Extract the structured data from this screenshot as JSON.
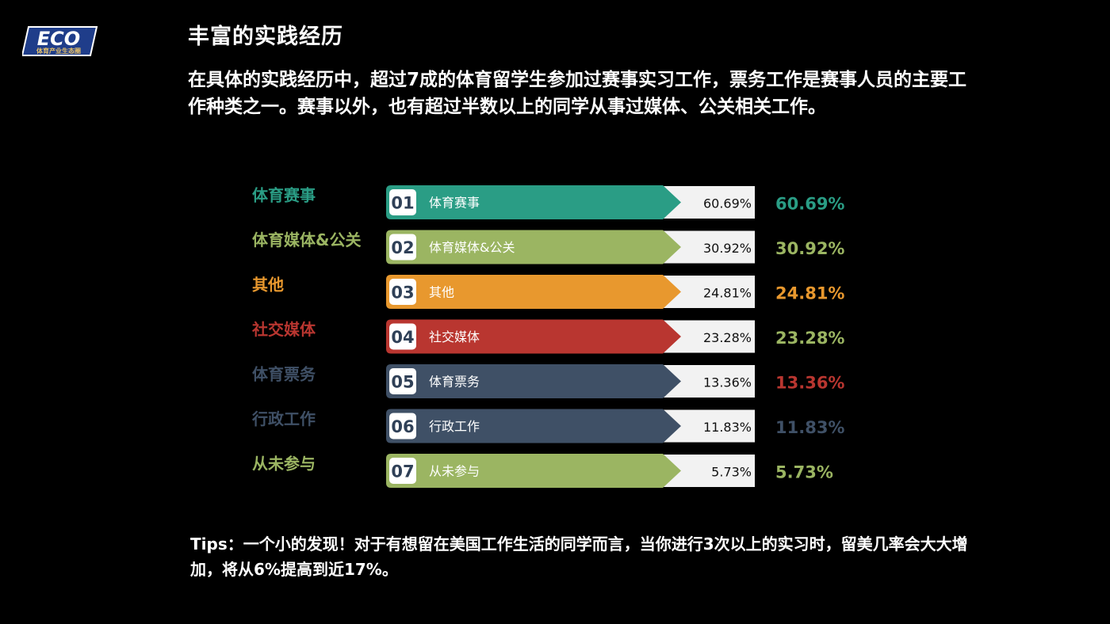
{
  "brand": {
    "logo_text": "ECO",
    "logo_subtitle": "体育产业生态圈"
  },
  "slide": {
    "title": "丰富的实践经历",
    "intro": "在具体的实践经历中，超过7成的体育留学生参加过赛事实习工作，票务工作是赛事人员的主要工作种类之一。赛事以外，也有超过半数以上的同学从事过媒体、公关相关工作。",
    "tips": "Tips：一个小的发现！对于有想留在美国工作生活的同学而言，当你进行3次以上的实习时，留美几率会大大增加，将从6%提高到近17%。"
  },
  "colors": {
    "background": "#000000",
    "teal": "#2a9d85",
    "olive": "#9bb562",
    "orange": "#e8982e",
    "red": "#b93630",
    "slate": "#3f5066",
    "value_box": "#f2f2f2"
  },
  "chart_data": {
    "type": "bar",
    "orientation": "horizontal",
    "unit": "%",
    "categories": [
      "体育赛事",
      "体育媒体&公关",
      "其他",
      "社交媒体",
      "体育票务",
      "行政工作",
      "从未参与"
    ],
    "ranks": [
      "01",
      "02",
      "03",
      "04",
      "05",
      "06",
      "07"
    ],
    "values": [
      60.69,
      30.92,
      24.81,
      23.28,
      13.36,
      11.83,
      5.73
    ],
    "value_labels": [
      "60.69%",
      "30.92%",
      "24.81%",
      "23.28%",
      "13.36%",
      "11.83%",
      "5.73%"
    ],
    "category_colors": [
      "#2a9d85",
      "#9bb562",
      "#e8982e",
      "#b93630",
      "#3f5066",
      "#3f5066",
      "#9bb562"
    ],
    "value_label_colors": [
      "#2a9d85",
      "#9bb562",
      "#e8982e",
      "#9bb562",
      "#b93630",
      "#3f5066",
      "#9bb562"
    ]
  }
}
